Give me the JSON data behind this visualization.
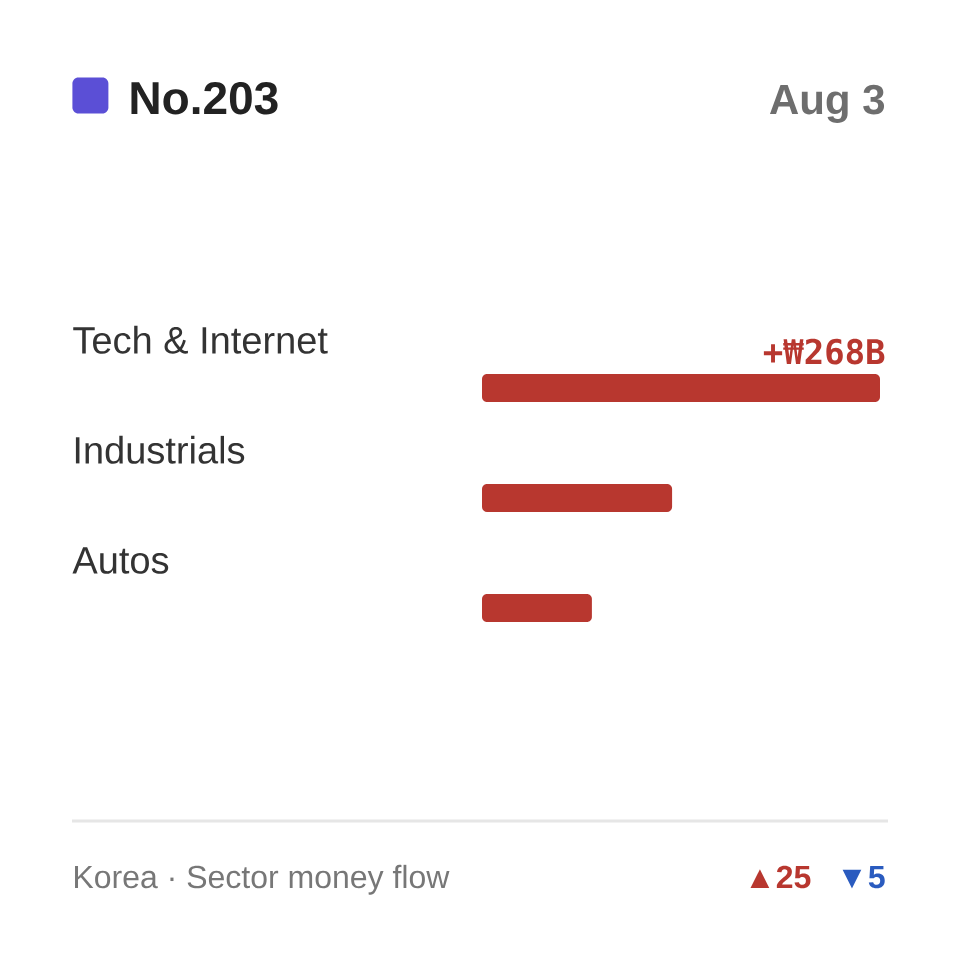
{
  "chart_data": {
    "type": "bar",
    "orientation": "horizontal",
    "title": "No.203",
    "subtitle": "Aug 3",
    "categories": [
      "Tech & Internet",
      "Industrials",
      "Autos"
    ],
    "values": [
      268,
      128,
      74
    ],
    "color": "#b8372f",
    "value_labels": [
      "+₩268B",
      null,
      null
    ],
    "annotations": [
      "Korea · Sector money flow",
      "▲25",
      "▼5"
    ]
  }
}
